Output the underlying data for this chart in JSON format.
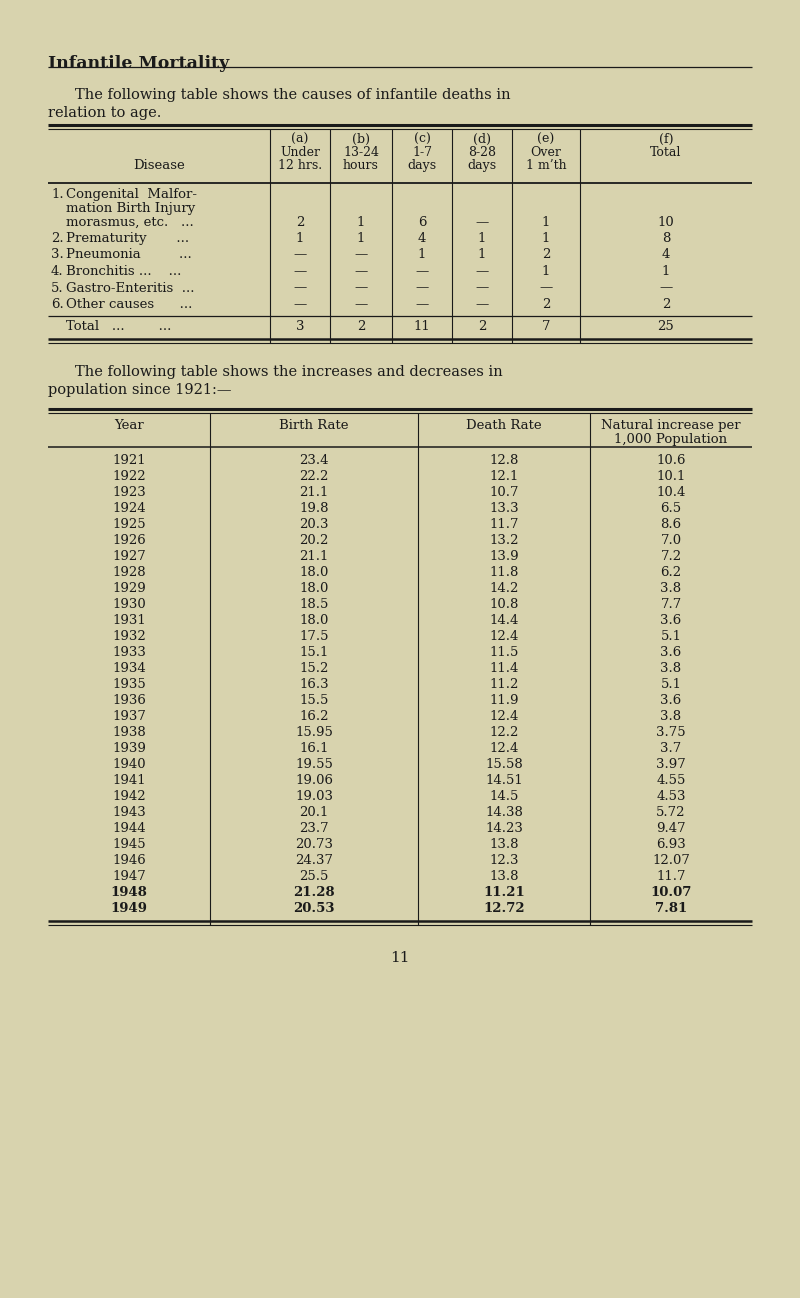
{
  "bg_color": "#d8d3ae",
  "title": "Infantile Mortality",
  "table1": {
    "col_headers_line1": [
      "(a)",
      "(b)",
      "(c)",
      "(d)",
      "(e)",
      "(f)"
    ],
    "col_headers_line2": [
      "Under",
      "13-24",
      "1-7",
      "8-28",
      "Over",
      "Total"
    ],
    "col_headers_line3": [
      "12 hrs.",
      "hours",
      "days",
      "days",
      "1 m’th",
      ""
    ],
    "row_label_header": "Disease",
    "rows": [
      {
        "num": "1.",
        "label1": "Congenital  Malfor-",
        "label2": "mation Birth Injury",
        "label3": "morasmus, etc.   ...",
        "values": [
          "2",
          "1",
          "6",
          "—",
          "1",
          "10"
        ]
      },
      {
        "num": "2.",
        "label1": "Prematurity       ...",
        "label2": "",
        "label3": "",
        "values": [
          "1",
          "1",
          "4",
          "1",
          "1",
          "8"
        ]
      },
      {
        "num": "3.",
        "label1": "Pneumonia         ...",
        "label2": "",
        "label3": "",
        "values": [
          "—",
          "—",
          "1",
          "1",
          "2",
          "4"
        ]
      },
      {
        "num": "4.",
        "label1": "Bronchitis ...    ...",
        "label2": "",
        "label3": "",
        "values": [
          "—",
          "—",
          "—",
          "—",
          "1",
          "1"
        ]
      },
      {
        "num": "5.",
        "label1": "Gastro-Enteritis  ...",
        "label2": "",
        "label3": "",
        "values": [
          "—",
          "—",
          "—",
          "—",
          "—",
          "—"
        ]
      },
      {
        "num": "6.",
        "label1": "Other causes      ...",
        "label2": "",
        "label3": "",
        "values": [
          "—",
          "—",
          "—",
          "—",
          "2",
          "2"
        ]
      }
    ],
    "total_row": [
      "3",
      "2",
      "11",
      "2",
      "7",
      "25"
    ]
  },
  "table2": {
    "rows": [
      [
        "1921",
        "23.4",
        "12.8",
        "10.6"
      ],
      [
        "1922",
        "22.2",
        "12.1",
        "10.1"
      ],
      [
        "1923",
        "21.1",
        "10.7",
        "10.4"
      ],
      [
        "1924",
        "19.8",
        "13.3",
        "6.5"
      ],
      [
        "1925",
        "20.3",
        "11.7",
        "8.6"
      ],
      [
        "1926",
        "20.2",
        "13.2",
        "7.0"
      ],
      [
        "1927",
        "21.1",
        "13.9",
        "7.2"
      ],
      [
        "1928",
        "18.0",
        "11.8",
        "6.2"
      ],
      [
        "1929",
        "18.0",
        "14.2",
        "3.8"
      ],
      [
        "1930",
        "18.5",
        "10.8",
        "7.7"
      ],
      [
        "1931",
        "18.0",
        "14.4",
        "3.6"
      ],
      [
        "1932",
        "17.5",
        "12.4",
        "5.1"
      ],
      [
        "1933",
        "15.1",
        "11.5",
        "3.6"
      ],
      [
        "1934",
        "15.2",
        "11.4",
        "3.8"
      ],
      [
        "1935",
        "16.3",
        "11.2",
        "5.1"
      ],
      [
        "1936",
        "15.5",
        "11.9",
        "3.6"
      ],
      [
        "1937",
        "16.2",
        "12.4",
        "3.8"
      ],
      [
        "1938",
        "15.95",
        "12.2",
        "3.75"
      ],
      [
        "1939",
        "16.1",
        "12.4",
        "3.7"
      ],
      [
        "1940",
        "19.55",
        "15.58",
        "3.97"
      ],
      [
        "1941",
        "19.06",
        "14.51",
        "4.55"
      ],
      [
        "1942",
        "19.03",
        "14.5",
        "4.53"
      ],
      [
        "1943",
        "20.1",
        "14.38",
        "5.72"
      ],
      [
        "1944",
        "23.7",
        "14.23",
        "9.47"
      ],
      [
        "1945",
        "20.73",
        "13.8",
        "6.93"
      ],
      [
        "1946",
        "24.37",
        "12.3",
        "12.07"
      ],
      [
        "1947",
        "25.5",
        "13.8",
        "11.7"
      ],
      [
        "1948",
        "21.28",
        "11.21",
        "10.07"
      ],
      [
        "1949",
        "20.53",
        "12.72",
        "7.81"
      ]
    ]
  }
}
